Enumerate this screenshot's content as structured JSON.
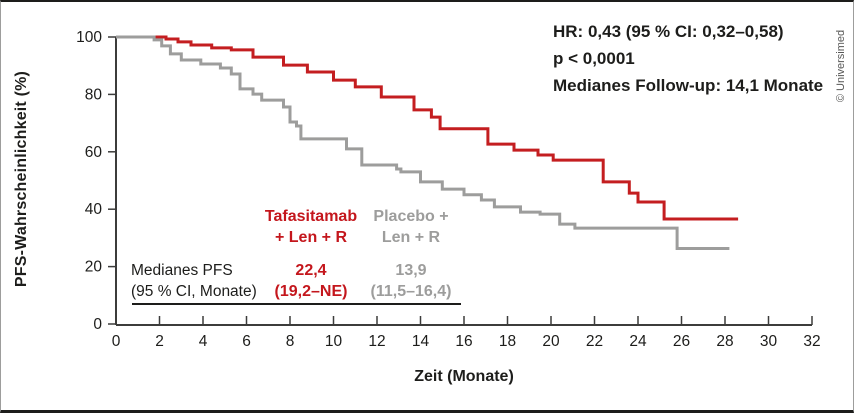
{
  "frame": {
    "copyright": "© Universimed"
  },
  "stats": {
    "hr_line": "HR: 0,43 (95 % CI: 0,32–0,58)",
    "p_line": "p < 0,0001",
    "followup_line": "Medianes Follow-up: 14,1 Monate"
  },
  "table": {
    "row_label_line1": "Medianes PFS",
    "row_label_line2": "(95 % CI, Monate)",
    "col_tafasitamab": {
      "header_line1": "Tafasitamab",
      "header_line2": "+ Len + R",
      "median": "22,4",
      "ci": "(19,2–NE)"
    },
    "col_placebo": {
      "header_line1": "Placebo +",
      "header_line2": "Len + R",
      "median": "13,9",
      "ci": "(11,5–16,4)"
    }
  },
  "chart_data": {
    "type": "line",
    "subtype": "kaplan-meier-step",
    "title": "",
    "xlabel": "Zeit (Monate)",
    "ylabel": "PFS-Wahrscheinlichkeit (%)",
    "xlim": [
      0,
      32
    ],
    "ylim": [
      0,
      100
    ],
    "x_ticks": [
      0,
      2,
      4,
      6,
      8,
      10,
      12,
      14,
      16,
      18,
      20,
      22,
      24,
      26,
      28,
      30,
      32
    ],
    "y_ticks": [
      0,
      20,
      40,
      60,
      80,
      100
    ],
    "grid": false,
    "legend_position": "inside-left-as-table",
    "colors": {
      "tafasitamab": "#c41e20",
      "placebo": "#9d9d9c",
      "axis": "#3c3c3b",
      "text": "#1d1d1b"
    },
    "series": [
      {
        "name": "Tafasitamab + Len + R",
        "color_key": "tafasitamab",
        "end_x": 28.6,
        "points": [
          [
            0,
            100
          ],
          [
            2.3,
            99.3
          ],
          [
            2.85,
            98.3
          ],
          [
            3.45,
            97.2
          ],
          [
            4.4,
            96.2
          ],
          [
            5.3,
            95.5
          ],
          [
            6.3,
            93
          ],
          [
            7.7,
            90.2
          ],
          [
            8.8,
            87.8
          ],
          [
            10,
            85
          ],
          [
            11,
            82.6
          ],
          [
            12.2,
            79.1
          ],
          [
            13.7,
            74.6
          ],
          [
            14.5,
            72.1
          ],
          [
            14.9,
            68
          ],
          [
            17.1,
            62.7
          ],
          [
            18.3,
            60.6
          ],
          [
            19.4,
            58.9
          ],
          [
            20.1,
            57.1
          ],
          [
            22.4,
            49.5
          ],
          [
            23.6,
            45.6
          ],
          [
            24,
            42.5
          ],
          [
            25.2,
            36.6
          ]
        ]
      },
      {
        "name": "Placebo + Len + R",
        "color_key": "placebo",
        "end_x": 28.2,
        "points": [
          [
            0,
            100
          ],
          [
            1.75,
            99
          ],
          [
            2.1,
            96.9
          ],
          [
            2.5,
            94.1
          ],
          [
            3,
            92
          ],
          [
            3.9,
            90.6
          ],
          [
            4.8,
            89.2
          ],
          [
            5.3,
            87.1
          ],
          [
            5.7,
            81.9
          ],
          [
            6.3,
            80.1
          ],
          [
            6.7,
            78
          ],
          [
            7.7,
            75.6
          ],
          [
            8,
            70.4
          ],
          [
            8.3,
            69
          ],
          [
            8.5,
            64.5
          ],
          [
            10.6,
            61
          ],
          [
            11.3,
            55.4
          ],
          [
            12.9,
            54
          ],
          [
            13.1,
            53
          ],
          [
            14,
            49.5
          ],
          [
            15,
            47
          ],
          [
            16,
            45
          ],
          [
            16.8,
            43.2
          ],
          [
            17.4,
            40.8
          ],
          [
            18.6,
            39
          ],
          [
            19.5,
            38.3
          ],
          [
            20.4,
            34.8
          ],
          [
            21.1,
            33.4
          ],
          [
            25.8,
            26.3
          ]
        ]
      }
    ]
  }
}
